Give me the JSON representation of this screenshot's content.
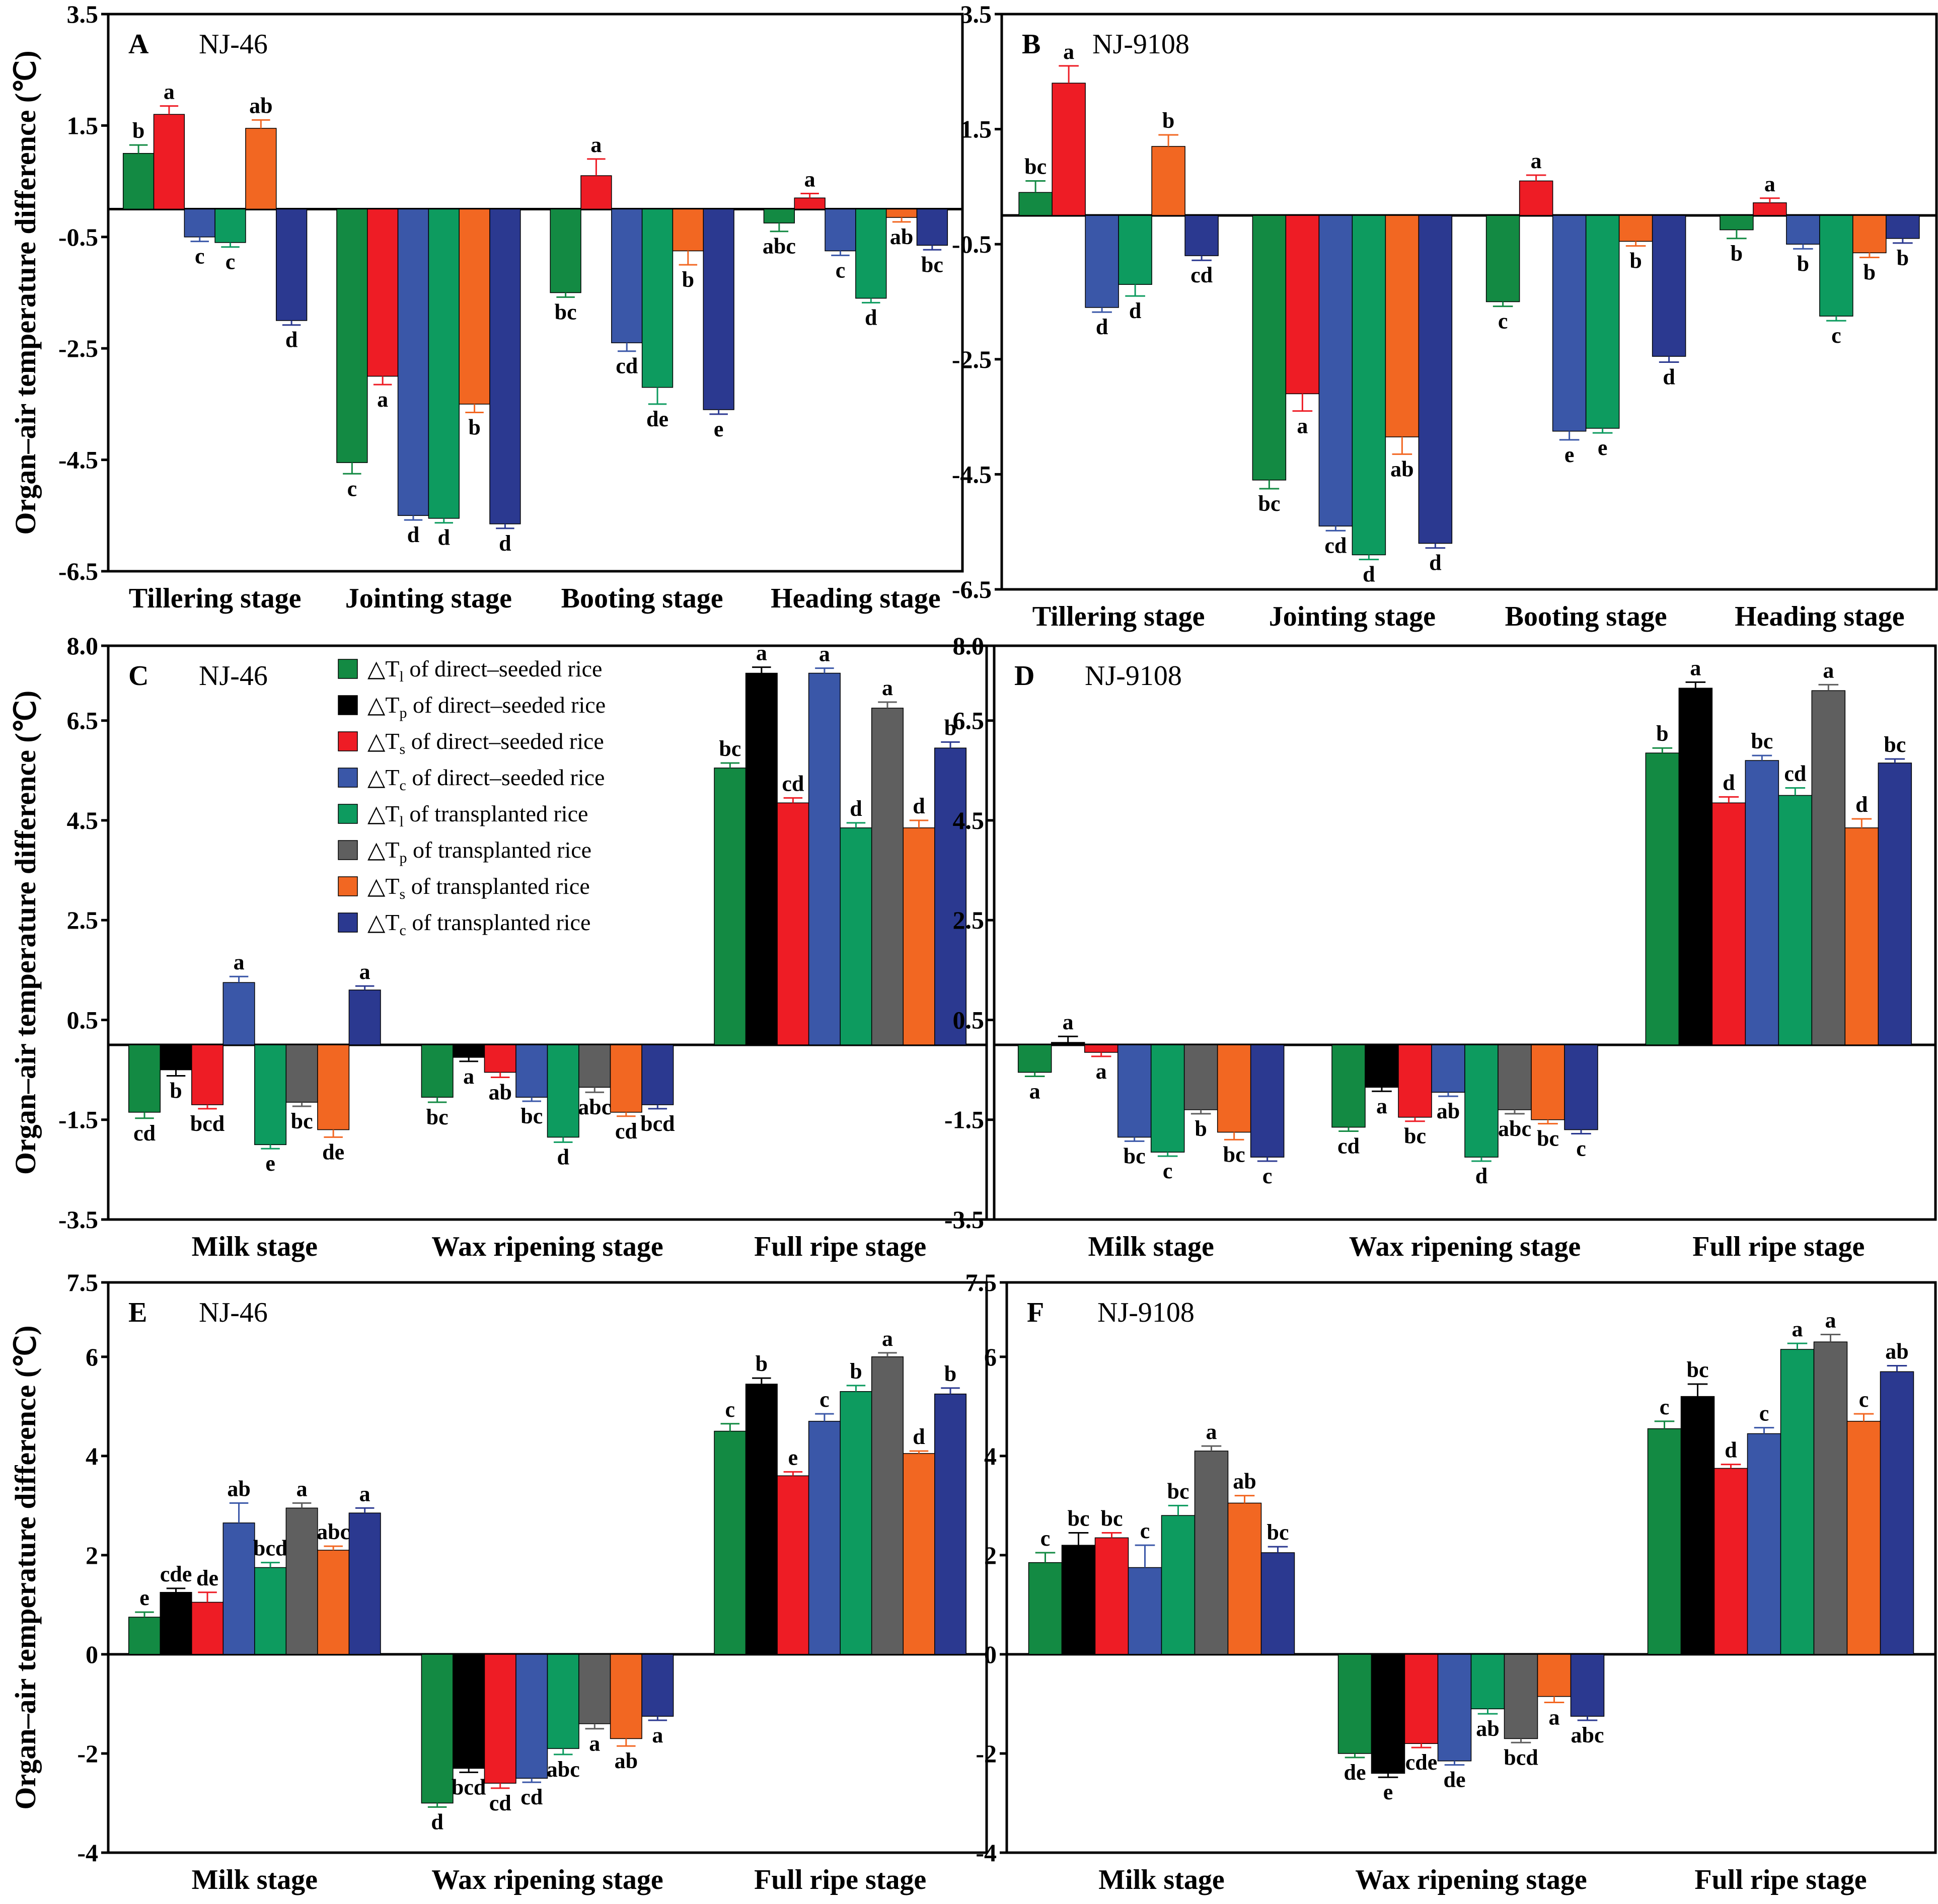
{
  "legend": [
    {
      "sym": "T",
      "sub": "l",
      "text": " of direct–seeded rice",
      "color": "#138a43"
    },
    {
      "sym": "T",
      "sub": "p",
      "text": " of direct–seeded rice",
      "color": "#000000"
    },
    {
      "sym": "T",
      "sub": "s",
      "text": " of direct–seeded rice",
      "color": "#ee1c25"
    },
    {
      "sym": "T",
      "sub": "c",
      "text": " of direct–seeded rice",
      "color": "#3a57a8"
    },
    {
      "sym": "T",
      "sub": "l",
      "text": " of transplanted rice",
      "color": "#0d9b5f"
    },
    {
      "sym": "T",
      "sub": "p",
      "text": " of transplanted rice",
      "color": "#5f5f5f"
    },
    {
      "sym": "T",
      "sub": "s",
      "text": " of transplanted rice",
      "color": "#f26722"
    },
    {
      "sym": "T",
      "sub": "c",
      "text": " of transplanted rice",
      "color": "#2b3990"
    }
  ],
  "legend_delta": "△",
  "chart_data": [
    {
      "type": "bar",
      "panel": "A",
      "title": "NJ-46",
      "ylabel": "Organ–air temperature difference (℃)",
      "ylim": [
        -6.5,
        3.5
      ],
      "yticks": [
        "3.5",
        "1.5",
        "-0.5",
        "-2.5",
        "-4.5",
        "-6.5"
      ],
      "categories": [
        "Tillering stage",
        "Jointing stage",
        "Booting stage",
        "Heading stage"
      ],
      "series_colors": [
        "#138a43",
        "#ee1c25",
        "#3a57a8",
        "#0d9b5f",
        "#f26722",
        "#2b3990"
      ],
      "values": [
        [
          1.0,
          1.7,
          -0.5,
          -0.6,
          1.45,
          -2.0
        ],
        [
          -4.55,
          -3.0,
          -5.5,
          -5.55,
          -3.5,
          -5.65
        ],
        [
          -1.5,
          0.6,
          -2.4,
          -3.2,
          -0.75,
          -3.6
        ],
        [
          -0.25,
          0.2,
          -0.75,
          -1.6,
          -0.15,
          -0.65
        ]
      ],
      "errors": [
        [
          0.15,
          0.15,
          0.08,
          0.08,
          0.15,
          0.08
        ],
        [
          0.2,
          0.15,
          0.08,
          0.08,
          0.15,
          0.08
        ],
        [
          0.08,
          0.3,
          0.15,
          0.3,
          0.25,
          0.08
        ],
        [
          0.15,
          0.08,
          0.08,
          0.08,
          0.08,
          0.08
        ]
      ],
      "sig": [
        [
          "b",
          "a",
          "c",
          "c",
          "ab",
          "d"
        ],
        [
          "c",
          "a",
          "d",
          "d",
          "b",
          "d"
        ],
        [
          "bc",
          "a",
          "cd",
          "de",
          "b",
          "e"
        ],
        [
          "abc",
          "a",
          "c",
          "d",
          "ab",
          "bc"
        ]
      ]
    },
    {
      "type": "bar",
      "panel": "B",
      "title": "NJ-9108",
      "ylim": [
        -6.5,
        3.5
      ],
      "yticks": [
        "3.5",
        "1.5",
        "-0.5",
        "-2.5",
        "-4.5",
        "-6.5"
      ],
      "categories": [
        "Tillering stage",
        "Jointing stage",
        "Booting stage",
        "Heading stage"
      ],
      "series_colors": [
        "#138a43",
        "#ee1c25",
        "#3a57a8",
        "#0d9b5f",
        "#f26722",
        "#2b3990"
      ],
      "values": [
        [
          0.4,
          2.3,
          -1.6,
          -1.2,
          1.2,
          -0.7
        ],
        [
          -4.6,
          -3.1,
          -5.4,
          -5.9,
          -3.85,
          -5.7
        ],
        [
          -1.5,
          0.6,
          -3.75,
          -3.7,
          -0.45,
          -2.45
        ],
        [
          -0.25,
          0.22,
          -0.5,
          -1.75,
          -0.65,
          -0.4
        ]
      ],
      "errors": [
        [
          0.2,
          0.3,
          0.08,
          0.2,
          0.2,
          0.08
        ],
        [
          0.15,
          0.3,
          0.08,
          0.08,
          0.3,
          0.08
        ],
        [
          0.08,
          0.1,
          0.15,
          0.08,
          0.08,
          0.1
        ],
        [
          0.15,
          0.08,
          0.08,
          0.08,
          0.08,
          0.08
        ]
      ],
      "sig": [
        [
          "bc",
          "a",
          "d",
          "d",
          "b",
          "cd"
        ],
        [
          "bc",
          "a",
          "cd",
          "d",
          "ab",
          "d"
        ],
        [
          "c",
          "a",
          "e",
          "e",
          "b",
          "d"
        ],
        [
          "b",
          "a",
          "b",
          "c",
          "b",
          "b"
        ]
      ]
    },
    {
      "type": "bar",
      "panel": "C",
      "title": "NJ-46",
      "ylabel": "Organ–air temperature difference (℃)",
      "ylim": [
        -3.5,
        8.0
      ],
      "yticks": [
        "8.0",
        "6.5",
        "4.5",
        "2.5",
        "0.5",
        "-1.5",
        "-3.5"
      ],
      "categories": [
        "Milk stage",
        "Wax ripening stage",
        "Full ripe stage"
      ],
      "series_colors": [
        "#138a43",
        "#000000",
        "#ee1c25",
        "#3a57a8",
        "#0d9b5f",
        "#5f5f5f",
        "#f26722",
        "#2b3990"
      ],
      "values": [
        [
          -1.35,
          -0.5,
          -1.2,
          1.25,
          -2.0,
          -1.15,
          -1.7,
          1.1
        ],
        [
          -1.05,
          -0.25,
          -0.55,
          -1.05,
          -1.85,
          -0.85,
          -1.35,
          -1.2
        ],
        [
          5.55,
          7.45,
          4.85,
          7.45,
          4.35,
          6.75,
          4.35,
          5.95
        ]
      ],
      "errors": [
        [
          0.12,
          0.12,
          0.08,
          0.12,
          0.08,
          0.08,
          0.15,
          0.08
        ],
        [
          0.1,
          0.08,
          0.1,
          0.08,
          0.1,
          0.1,
          0.08,
          0.08
        ],
        [
          0.1,
          0.12,
          0.1,
          0.1,
          0.1,
          0.12,
          0.15,
          0.12
        ]
      ],
      "sig": [
        [
          "cd",
          "b",
          "bcd",
          "a",
          "e",
          "bc",
          "de",
          "a"
        ],
        [
          "bc",
          "a",
          "ab",
          "bc",
          "d",
          "abc",
          "cd",
          "bcd"
        ],
        [
          "bc",
          "a",
          "cd",
          "a",
          "d",
          "a",
          "d",
          "b"
        ]
      ]
    },
    {
      "type": "bar",
      "panel": "D",
      "title": "NJ-9108",
      "ylim": [
        -3.5,
        8.0
      ],
      "yticks": [
        "8.0",
        "6.5",
        "4.5",
        "2.5",
        "0.5",
        "-1.5",
        "-3.5"
      ],
      "categories": [
        "Milk stage",
        "Wax ripening stage",
        "Full ripe stage"
      ],
      "series_colors": [
        "#138a43",
        "#000000",
        "#ee1c25",
        "#3a57a8",
        "#0d9b5f",
        "#5f5f5f",
        "#f26722",
        "#2b3990"
      ],
      "values": [
        [
          -0.55,
          0.05,
          -0.15,
          -1.85,
          -2.15,
          -1.3,
          -1.75,
          -2.25
        ],
        [
          -1.65,
          -0.85,
          -1.45,
          -0.95,
          -2.25,
          -1.3,
          -1.5,
          -1.7
        ],
        [
          5.85,
          7.15,
          4.85,
          5.7,
          5.0,
          7.1,
          4.35,
          5.65
        ]
      ],
      "errors": [
        [
          0.08,
          0.12,
          0.08,
          0.08,
          0.08,
          0.08,
          0.15,
          0.08
        ],
        [
          0.08,
          0.08,
          0.08,
          0.08,
          0.08,
          0.08,
          0.08,
          0.08
        ],
        [
          0.1,
          0.12,
          0.12,
          0.1,
          0.15,
          0.12,
          0.18,
          0.08
        ]
      ],
      "sig": [
        [
          "a",
          "a",
          "a",
          "bc",
          "c",
          "b",
          "bc",
          "c"
        ],
        [
          "cd",
          "a",
          "bc",
          "ab",
          "d",
          "abc",
          "bc",
          "c"
        ],
        [
          "b",
          "a",
          "d",
          "bc",
          "cd",
          "a",
          "d",
          "bc"
        ]
      ]
    },
    {
      "type": "bar",
      "panel": "E",
      "title": "NJ-46",
      "ylabel": "Organ–air temperature difference (℃)",
      "ylim": [
        -4,
        7.5
      ],
      "yticks": [
        "7.5",
        "6",
        "4",
        "2",
        "0",
        "-2",
        "-4"
      ],
      "categories": [
        "Milk stage",
        "Wax ripening stage",
        "Full ripe stage"
      ],
      "series_colors": [
        "#138a43",
        "#000000",
        "#ee1c25",
        "#3a57a8",
        "#0d9b5f",
        "#5f5f5f",
        "#f26722",
        "#2b3990"
      ],
      "values": [
        [
          0.75,
          1.25,
          1.05,
          2.65,
          1.75,
          2.95,
          2.1,
          2.85
        ],
        [
          -3.0,
          -2.3,
          -2.6,
          -2.5,
          -1.9,
          -1.4,
          -1.7,
          -1.25
        ],
        [
          4.5,
          5.45,
          3.6,
          4.7,
          5.3,
          6.0,
          4.05,
          5.25
        ]
      ],
      "errors": [
        [
          0.1,
          0.08,
          0.2,
          0.4,
          0.1,
          0.1,
          0.08,
          0.1
        ],
        [
          0.08,
          0.08,
          0.1,
          0.08,
          0.12,
          0.1,
          0.15,
          0.08
        ],
        [
          0.15,
          0.12,
          0.08,
          0.15,
          0.12,
          0.08,
          0.05,
          0.12
        ]
      ],
      "sig": [
        [
          "e",
          "cde",
          "de",
          "ab",
          "bcd",
          "a",
          "abc",
          "a"
        ],
        [
          "d",
          "bcd",
          "cd",
          "cd",
          "abc",
          "a",
          "ab",
          "a"
        ],
        [
          "c",
          "b",
          "e",
          "c",
          "b",
          "a",
          "d",
          "b"
        ]
      ]
    },
    {
      "type": "bar",
      "panel": "F",
      "title": "NJ-9108",
      "ylim": [
        -4,
        7.5
      ],
      "yticks": [
        "7.5",
        "6",
        "4",
        "2",
        "0",
        "-2",
        "-4"
      ],
      "categories": [
        "Milk stage",
        "Wax ripening stage",
        "Full ripe stage"
      ],
      "series_colors": [
        "#138a43",
        "#000000",
        "#ee1c25",
        "#3a57a8",
        "#0d9b5f",
        "#5f5f5f",
        "#f26722",
        "#2b3990"
      ],
      "values": [
        [
          1.85,
          2.2,
          2.35,
          1.75,
          2.8,
          4.1,
          3.05,
          2.05
        ],
        [
          -2.0,
          -2.4,
          -1.8,
          -2.15,
          -1.1,
          -1.7,
          -0.85,
          -1.25
        ],
        [
          4.55,
          5.2,
          3.75,
          4.45,
          6.15,
          6.3,
          4.7,
          5.7
        ]
      ],
      "errors": [
        [
          0.2,
          0.25,
          0.1,
          0.45,
          0.2,
          0.1,
          0.15,
          0.12
        ],
        [
          0.08,
          0.08,
          0.08,
          0.08,
          0.1,
          0.08,
          0.12,
          0.08
        ],
        [
          0.15,
          0.25,
          0.08,
          0.12,
          0.12,
          0.15,
          0.15,
          0.12
        ]
      ],
      "sig": [
        [
          "c",
          "bc",
          "bc",
          "c",
          "bc",
          "a",
          "ab",
          "bc"
        ],
        [
          "de",
          "e",
          "cde",
          "de",
          "ab",
          "bcd",
          "a",
          "abc"
        ],
        [
          "c",
          "bc",
          "d",
          "c",
          "a",
          "a",
          "c",
          "ab"
        ]
      ]
    }
  ]
}
